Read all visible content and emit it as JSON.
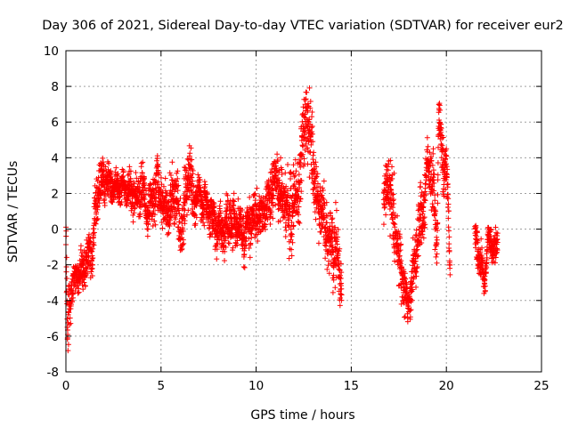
{
  "chart_data": {
    "type": "scatter",
    "title": "Day 306 of 2021, Sidereal Day-to-day VTEC variation (SDTVAR) for receiver eur2",
    "xlabel": "GPS time / hours",
    "ylabel": "SDTVAR / TECUs",
    "xlim": [
      0,
      25
    ],
    "ylim": [
      -8,
      10
    ],
    "x_ticks": [
      0,
      5,
      10,
      15,
      20,
      25
    ],
    "y_ticks": [
      -8,
      -6,
      -4,
      -2,
      0,
      2,
      4,
      6,
      8,
      10
    ],
    "x_tick_labels": [
      "0",
      "5",
      "10",
      "15",
      "20",
      "25"
    ],
    "y_tick_labels": [
      "-8",
      "-6",
      "-4",
      "-2",
      "0",
      "2",
      "4",
      "6",
      "8",
      "10"
    ],
    "grid": true,
    "marker": "+",
    "series": [
      {
        "name": "SDTVAR",
        "color": "#ff0000",
        "profile": [
          [
            0.0,
            0.0,
            1.2
          ],
          [
            0.08,
            -6.2,
            0.8
          ],
          [
            0.15,
            -4.5,
            1.5
          ],
          [
            0.3,
            -3.5,
            0.8
          ],
          [
            0.5,
            -2.8,
            0.8
          ],
          [
            0.8,
            -2.4,
            1.0
          ],
          [
            1.1,
            -1.8,
            1.0
          ],
          [
            1.4,
            -1.2,
            1.0
          ],
          [
            1.5,
            0.5,
            1.5
          ],
          [
            1.8,
            2.8,
            1.2
          ],
          [
            2.2,
            2.5,
            1.0
          ],
          [
            2.6,
            2.2,
            0.8
          ],
          [
            3.0,
            2.4,
            0.8
          ],
          [
            3.4,
            2.1,
            0.8
          ],
          [
            3.8,
            1.6,
            1.0
          ],
          [
            4.0,
            2.5,
            1.5
          ],
          [
            4.2,
            1.0,
            1.2
          ],
          [
            4.5,
            1.5,
            1.2
          ],
          [
            4.8,
            2.5,
            1.5
          ],
          [
            5.2,
            1.0,
            1.2
          ],
          [
            5.5,
            1.5,
            1.5
          ],
          [
            5.8,
            2.2,
            1.5
          ],
          [
            6.0,
            -0.5,
            1.5
          ],
          [
            6.2,
            1.0,
            2.0
          ],
          [
            6.5,
            3.5,
            1.5
          ],
          [
            6.7,
            1.5,
            1.2
          ],
          [
            7.0,
            1.8,
            1.0
          ],
          [
            7.4,
            1.2,
            1.2
          ],
          [
            7.8,
            0.3,
            1.2
          ],
          [
            8.2,
            -0.3,
            1.2
          ],
          [
            8.6,
            0.3,
            1.2
          ],
          [
            9.0,
            0.2,
            1.2
          ],
          [
            9.4,
            -0.2,
            1.3
          ],
          [
            9.8,
            0.8,
            1.2
          ],
          [
            10.2,
            0.8,
            1.2
          ],
          [
            10.6,
            1.5,
            1.2
          ],
          [
            11.0,
            2.8,
            1.5
          ],
          [
            11.4,
            1.8,
            1.5
          ],
          [
            11.8,
            0.8,
            2.0
          ],
          [
            12.2,
            2.2,
            1.5
          ],
          [
            12.6,
            6.5,
            2.0
          ],
          [
            12.9,
            5.0,
            2.0
          ],
          [
            13.1,
            2.0,
            1.8
          ],
          [
            13.4,
            1.2,
            1.5
          ],
          [
            13.8,
            -0.8,
            1.8
          ],
          [
            14.2,
            -1.2,
            1.8
          ],
          [
            14.5,
            -3.0,
            1.0
          ],
          [
            16.7,
            1.5,
            1.0
          ],
          [
            17.0,
            3.0,
            1.8
          ],
          [
            17.2,
            0.8,
            2.0
          ],
          [
            17.5,
            -1.5,
            2.0
          ],
          [
            17.8,
            -3.5,
            1.3
          ],
          [
            18.0,
            -4.2,
            1.0
          ],
          [
            18.3,
            -2.2,
            1.5
          ],
          [
            18.6,
            0.2,
            1.5
          ],
          [
            18.8,
            1.0,
            1.5
          ],
          [
            19.0,
            3.8,
            0.8
          ],
          [
            19.3,
            2.5,
            1.5
          ],
          [
            19.5,
            -1.2,
            1.2
          ],
          [
            19.6,
            6.8,
            0.8
          ],
          [
            19.8,
            3.5,
            1.5
          ],
          [
            20.0,
            3.8,
            1.2
          ],
          [
            20.2,
            -2.3,
            1.0
          ],
          [
            21.5,
            -0.5,
            0.8
          ],
          [
            21.8,
            -1.8,
            1.0
          ],
          [
            22.0,
            -3.0,
            0.8
          ],
          [
            22.2,
            -0.5,
            0.8
          ],
          [
            22.5,
            -1.0,
            0.8
          ],
          [
            22.7,
            -1.2,
            0.8
          ]
        ]
      }
    ]
  }
}
